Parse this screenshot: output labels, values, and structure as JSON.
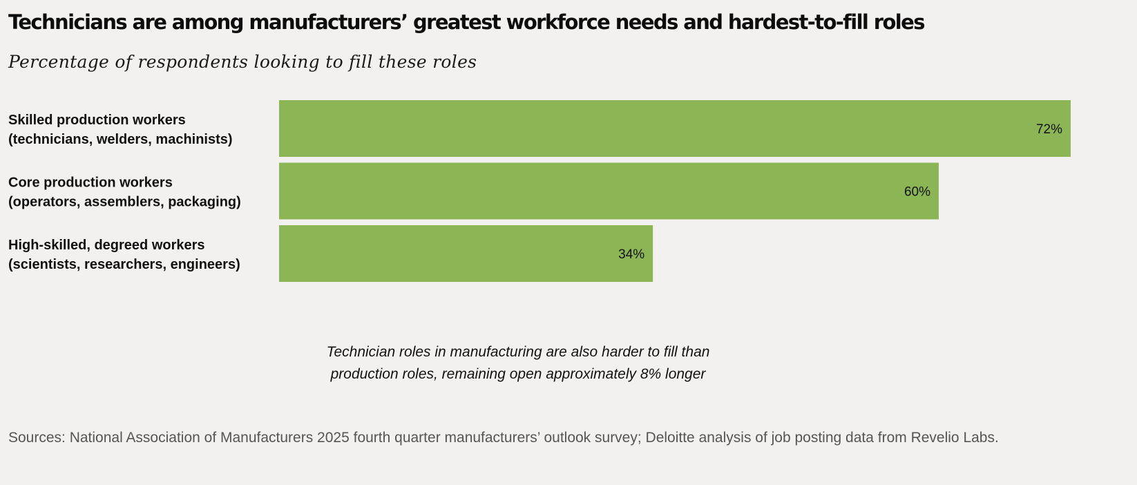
{
  "title": "Technicians are among manufacturers’ greatest workforce needs and hardest-to-fill roles",
  "subtitle": "Percentage of respondents looking to fill these roles",
  "annotation": {
    "line1": "Technician roles in manufacturing are also harder to fill than",
    "line2": "production roles, remaining open approximately 8% longer"
  },
  "sources": "Sources: National Association of Manufacturers 2025 fourth quarter manufacturers’ outlook survey; Deloitte analysis of job posting data from Revelio Labs.",
  "colors": {
    "bar": "#8cb556",
    "background": "#f2f1ef"
  },
  "chart_data": {
    "type": "bar",
    "orientation": "horizontal",
    "categories": [
      [
        "Skilled production workers",
        "(technicians, welders, machinists)"
      ],
      [
        "Core production workers",
        "(operators, assemblers, packaging)"
      ],
      [
        "High-skilled, degreed workers",
        "(scientists, researchers, engineers)"
      ]
    ],
    "values": [
      72,
      60,
      34
    ],
    "value_labels": [
      "72%",
      "60%",
      "34%"
    ],
    "xlim": [
      0,
      72
    ],
    "grid": false,
    "legend": "none"
  }
}
